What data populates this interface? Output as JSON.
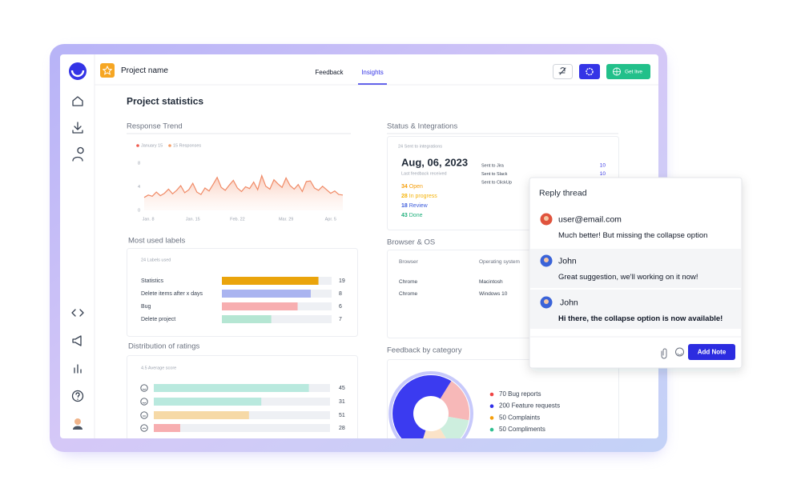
{
  "header": {
    "project_name": "Project name",
    "tabs": [
      "Feedback",
      "Insights"
    ],
    "go_live": "Get live"
  },
  "page_title": "Project statistics",
  "response_trend": {
    "type": "line",
    "title": "Response Trend",
    "color": "#f08a66",
    "legend": [
      {
        "name": "January 15",
        "color": "#ef5a4f"
      },
      {
        "name": "15 Responses",
        "color": "#f4a06b"
      }
    ],
    "categories": [
      null,
      "Jan. 8",
      null,
      null,
      null,
      null,
      null,
      null,
      null,
      null,
      null,
      null,
      "Jan. 15",
      null,
      null,
      null,
      null,
      null,
      null,
      null,
      null,
      null,
      null,
      "Feb. 22",
      null,
      null,
      null,
      null,
      null,
      null,
      null,
      null,
      null,
      null,
      null,
      "Mar. 29",
      null,
      null,
      null,
      null,
      null,
      null,
      null,
      null,
      null,
      null,
      "Apr. 5",
      null,
      null,
      null
    ],
    "values": [
      2.2,
      2.6,
      2.4,
      3.1,
      2.5,
      2.9,
      3.6,
      2.8,
      3.4,
      4.2,
      3.0,
      3.5,
      4.6,
      3.1,
      2.7,
      3.8,
      3.3,
      4.4,
      5.6,
      3.9,
      3.4,
      4.3,
      5.1,
      3.8,
      3.2,
      4.0,
      3.7,
      4.8,
      3.5,
      5.9,
      4.1,
      3.6,
      5.2,
      4.5,
      3.9,
      5.5,
      4.2,
      3.6,
      4.4,
      3.2,
      4.9,
      5.0,
      3.8,
      3.4,
      4.1,
      3.5,
      2.9,
      3.3,
      2.7,
      2.6
    ],
    "ylim": [
      0,
      8
    ],
    "yticks": [
      0,
      4,
      8
    ]
  },
  "status": {
    "title": "Status & Integrations",
    "subtitle": "24 Sent to integrations",
    "date": "Aug, 06, 2023",
    "date_caption": "Last feedback received",
    "statuses": [
      {
        "count": 34,
        "label": "Open",
        "color": "#f59e0b"
      },
      {
        "count": 28,
        "label": "In progress",
        "color": "#f5b30b"
      },
      {
        "count": 18,
        "label": "Review",
        "color": "#3b5bdb"
      },
      {
        "count": 43,
        "label": "Done",
        "color": "#22b07d"
      }
    ],
    "integrations": [
      {
        "label": "Sent to Jira",
        "value": 10
      },
      {
        "label": "Sent to Slack",
        "value": 10
      },
      {
        "label": "Sent to ClickUp"
      }
    ]
  },
  "labels": {
    "type": "bar",
    "title": "Most used labels",
    "subtitle": "24 Labels used",
    "categories": [
      "Statistics",
      "Delete items after x days",
      "Bug",
      "Delete project"
    ],
    "values": [
      19,
      8,
      6,
      7
    ],
    "fill": [
      88,
      81,
      69,
      45
    ],
    "colors": [
      "#eaa40c",
      "#aab4f0",
      "#f7aeb0",
      "#b5e6d3"
    ]
  },
  "ratings": {
    "type": "bar",
    "title": "Distribution of ratings",
    "subtitle": "4.5 Average score",
    "values": [
      45,
      31,
      51,
      28
    ],
    "fill": [
      88,
      61,
      54,
      15
    ],
    "colors": [
      "#b9e9de",
      "#b9e9de",
      "#f6d9a6",
      "#f7aeb0"
    ]
  },
  "browser": {
    "title": "Browser & OS",
    "columns": [
      "Browser",
      "Operating system"
    ],
    "rows": [
      [
        "Chrome",
        "Macintosh"
      ],
      [
        "Chrome",
        "Windows 10"
      ]
    ]
  },
  "category": {
    "type": "pie",
    "title": "Feedback by category",
    "series": [
      {
        "name": "Bug reports",
        "value": 70,
        "color": "#ef4444",
        "slice_color": "#f7b8b8"
      },
      {
        "name": "Feature requests",
        "value": 200,
        "color": "#3030e8",
        "slice_color": "#3b3bf0"
      },
      {
        "name": "Complaints",
        "value": 50,
        "color": "#f59e0b",
        "slice_color": "#fbe3c8"
      },
      {
        "name": "Compliments",
        "value": 50,
        "color": "#2fbf8f",
        "slice_color": "#cdeede"
      }
    ]
  },
  "reply": {
    "title": "Reply thread",
    "messages": [
      {
        "author": "user@email.com",
        "text": "Much better! But missing the collapse option"
      },
      {
        "author": "John",
        "text": "Great suggestion, we'll working on it now!"
      },
      {
        "author": "John",
        "text": "Hi there, the collapse option is now available!"
      }
    ],
    "button": "Add Note"
  }
}
